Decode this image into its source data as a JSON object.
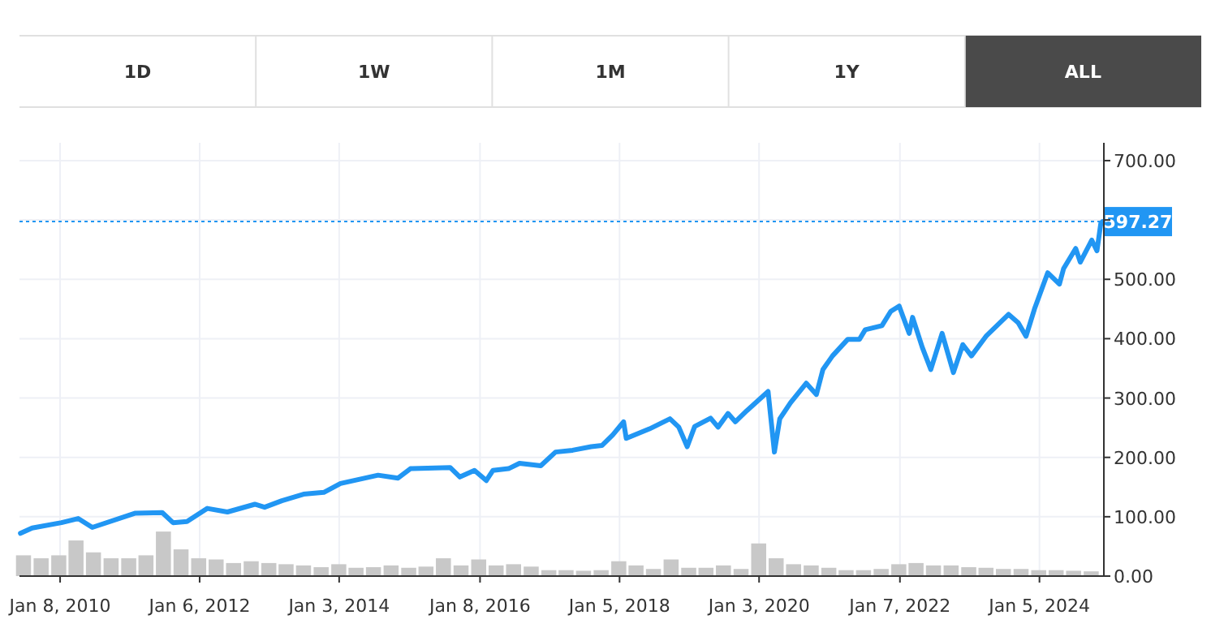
{
  "chart_data": {
    "type": "line",
    "annotations": [
      "1D",
      "1W",
      "1M",
      "1Y",
      "ALL"
    ],
    "xlim": [
      "2009-06-10",
      "2024-12-06"
    ],
    "xticks": [
      {
        "value": "2010-01-08",
        "label": "Jan 8, 2010"
      },
      {
        "value": "2012-01-06",
        "label": "Jan 6, 2012"
      },
      {
        "value": "2014-01-03",
        "label": "Jan 3, 2014"
      },
      {
        "value": "2016-01-08",
        "label": "Jan 8, 2016"
      },
      {
        "value": "2018-01-05",
        "label": "Jan 5, 2018"
      },
      {
        "value": "2020-01-03",
        "label": "Jan 3, 2020"
      },
      {
        "value": "2022-01-07",
        "label": "Jan 7, 2022"
      },
      {
        "value": "2024-01-05",
        "label": "Jan 5, 2024"
      }
    ],
    "ylim": [
      0,
      730
    ],
    "yticks": [
      {
        "value": 0,
        "label": "0.00"
      },
      {
        "value": 100,
        "label": "100.00"
      },
      {
        "value": 200,
        "label": "200.00"
      },
      {
        "value": 300,
        "label": "300.00"
      },
      {
        "value": 400,
        "label": "400.00"
      },
      {
        "value": 500,
        "label": "500.00"
      },
      {
        "value": 600,
        "label": null
      },
      {
        "value": 700,
        "label": "700.00"
      }
    ],
    "grid": true,
    "marker": "none",
    "line_style": "solid",
    "ref_lines": [
      {
        "axis": "y",
        "value": 597.27,
        "label": "597.27",
        "color": "#2196f3",
        "line_style": "dotted"
      }
    ],
    "series": [
      {
        "type": "bar",
        "color": "#c8c8c8",
        "x": [
          "2009-07",
          "2009-10",
          "2010-01",
          "2010-04",
          "2010-07",
          "2010-10",
          "2011-01",
          "2011-04",
          "2011-07",
          "2011-10",
          "2012-01",
          "2012-04",
          "2012-07",
          "2012-10",
          "2013-01",
          "2013-04",
          "2013-07",
          "2013-10",
          "2014-01",
          "2014-04",
          "2014-07",
          "2014-10",
          "2015-01",
          "2015-04",
          "2015-07",
          "2015-10",
          "2016-01",
          "2016-04",
          "2016-07",
          "2016-10",
          "2017-01",
          "2017-04",
          "2017-07",
          "2017-10",
          "2018-01",
          "2018-04",
          "2018-07",
          "2018-10",
          "2019-01",
          "2019-04",
          "2019-07",
          "2019-10",
          "2020-01",
          "2020-04",
          "2020-07",
          "2020-10",
          "2021-01",
          "2021-04",
          "2021-07",
          "2021-10",
          "2022-01",
          "2022-04",
          "2022-07",
          "2022-10",
          "2023-01",
          "2023-04",
          "2023-07",
          "2023-10",
          "2024-01",
          "2024-04",
          "2024-07",
          "2024-10"
        ],
        "values": [
          35,
          30,
          35,
          60,
          40,
          30,
          30,
          35,
          75,
          45,
          30,
          28,
          22,
          25,
          22,
          20,
          18,
          15,
          20,
          14,
          15,
          18,
          14,
          16,
          30,
          18,
          28,
          18,
          20,
          16,
          10,
          10,
          9,
          10,
          25,
          18,
          12,
          28,
          14,
          14,
          18,
          12,
          55,
          30,
          20,
          18,
          14,
          10,
          10,
          12,
          20,
          22,
          18,
          18,
          15,
          14,
          12,
          12,
          10,
          10,
          9,
          8
        ]
      },
      {
        "color": "#2196f3",
        "x": [
          "2009-06-15",
          "2009-08-15",
          "2010-01-15",
          "2010-04-12",
          "2010-06-25",
          "2011-02-05",
          "2011-06-25",
          "2011-08-20",
          "2011-11-01",
          "2012-02-15",
          "2012-05-30",
          "2012-10-20",
          "2012-12-10",
          "2013-03-10",
          "2013-07-01",
          "2013-10-15",
          "2014-01-10",
          "2014-07-25",
          "2014-11-05",
          "2015-01-10",
          "2015-08-05",
          "2015-09-25",
          "2015-12-10",
          "2016-02-10",
          "2016-03-15",
          "2016-06-05",
          "2016-08-01",
          "2016-11-20",
          "2017-02-05",
          "2017-05-05",
          "2017-08-10",
          "2017-10-05",
          "2017-12-01",
          "2018-01-26",
          "2018-02-09",
          "2018-06-10",
          "2018-09-25",
          "2018-11-10",
          "2018-12-24",
          "2019-02-01",
          "2019-04-25",
          "2019-06-03",
          "2019-07-25",
          "2019-09-01",
          "2019-11-01",
          "2020-02-19",
          "2020-03-23",
          "2020-04-20",
          "2020-06-15",
          "2020-09-05",
          "2020-10-28",
          "2020-12-01",
          "2021-01-20",
          "2021-04-10",
          "2021-06-10",
          "2021-07-10",
          "2021-10-05",
          "2021-11-20",
          "2022-01-03",
          "2022-02-24",
          "2022-03-14",
          "2022-05-04",
          "2022-06-17",
          "2022-08-15",
          "2022-10-13",
          "2022-12-01",
          "2023-01-15",
          "2023-04-01",
          "2023-07-28",
          "2023-09-16",
          "2023-10-27",
          "2023-12-10",
          "2024-02-17",
          "2024-04-18",
          "2024-05-10",
          "2024-07-12",
          "2024-08-05",
          "2024-10-04",
          "2024-10-31",
          "2024-11-20",
          "2024-11-29"
        ],
        "values": [
          72,
          81,
          90,
          97,
          82,
          106,
          107,
          90,
          92,
          114,
          108,
          121,
          116,
          127,
          138,
          141,
          156,
          170,
          165,
          181,
          183,
          167,
          178,
          161,
          178,
          181,
          190,
          186,
          209,
          212,
          218,
          220,
          238,
          260,
          232,
          248,
          265,
          251,
          218,
          252,
          266,
          251,
          274,
          260,
          279,
          311,
          209,
          265,
          292,
          325,
          306,
          348,
          371,
          399,
          399,
          415,
          422,
          446,
          455,
          409,
          436,
          385,
          348,
          409,
          343,
          390,
          371,
          404,
          441,
          427,
          404,
          450,
          511,
          492,
          518,
          552,
          529,
          566,
          548,
          594,
          597.27
        ]
      }
    ]
  }
}
